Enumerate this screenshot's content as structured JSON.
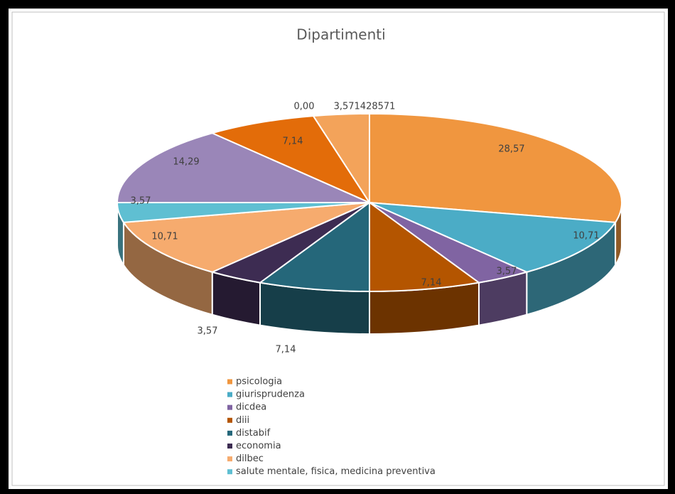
{
  "chart_data": {
    "type": "pie",
    "title": "Dipartimenti",
    "categories": [
      "psicologia",
      "giurisprudenza",
      "dicdea",
      "diii",
      "distabif",
      "economia",
      "dilbec",
      "salute mentale, fisica, medicina preventiva",
      null,
      null,
      null,
      null
    ],
    "values": [
      28.57,
      10.71,
      3.57,
      7.14,
      7.14,
      3.57,
      10.71,
      3.57,
      14.29,
      7.14,
      0,
      3.571428571
    ],
    "value_labels": [
      "28,57",
      "10,71",
      "3,57",
      "7,14",
      "7,14",
      "3,57",
      "10,71",
      "3,57",
      "14,29",
      "7,14",
      "0,00",
      "3,571428571"
    ],
    "colors": [
      "#f0963f",
      "#4bacc6",
      "#8064a2",
      "#b45500",
      "#25677a",
      "#3d2c52",
      "#f6ab6e",
      "#5fbfd2",
      "#9a86b8",
      "#e36c09",
      "#c0504d",
      "#f3a35a"
    ],
    "legend": "bottom"
  }
}
